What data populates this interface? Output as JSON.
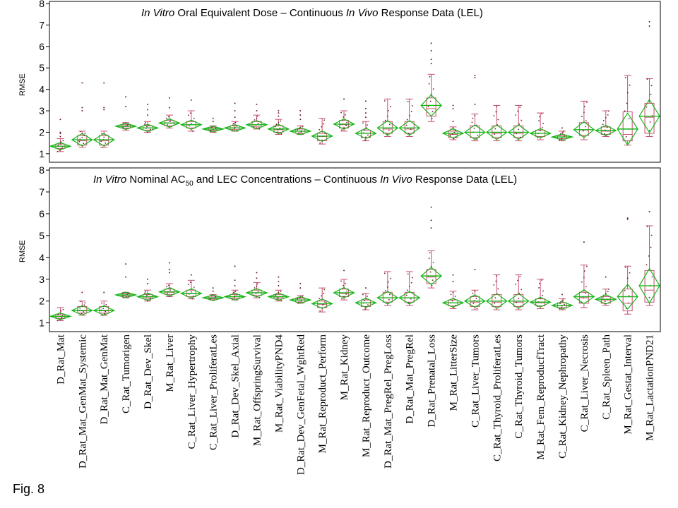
{
  "figure_label": "Fig. 8",
  "chart_data": [
    {
      "type": "box",
      "title_parts": [
        {
          "text": "In Vitro",
          "italic": true
        },
        {
          "text": " Oral Equivalent Dose – Continuous ",
          "italic": false
        },
        {
          "text": "In Vivo",
          "italic": true
        },
        {
          "text": " Response Data (LEL)",
          "italic": false
        }
      ],
      "ylabel": "RMSE",
      "ylim": [
        0.6,
        8.1
      ],
      "yticks": [
        1,
        2,
        3,
        4,
        5,
        6,
        7,
        8
      ],
      "colors": {
        "box": "#c8506e",
        "whisker": "#c8506e",
        "points": "#6b1f33",
        "diamond": "#19b419",
        "mean": "#19b419"
      },
      "categories": [
        "D_Rat_Mat",
        "D_Rat_Mat_GenMat_Systemic",
        "D_Rat_Mat_GenMat",
        "C_Rat_Tumorigen",
        "D_Rat_Dev_Skel",
        "M_Rat_Liver",
        "C_Rat_Liver_Hypertrophy",
        "C_Rat_Liver_ProliferatLes",
        "D_Rat_Dev_Skel_Axial",
        "M_Rat_OffspringSurvival",
        "M_Rat_ViabilityPND4",
        "D_Rat_Dev_GenFetal_WghtRed",
        "M_Rat_Reproduct_Perform",
        "M_Rat_Kidney",
        "M_Rat_Reproduct_Outcome",
        "D_Rat_Mat_PregRel_PregLoss",
        "D_Rat_Mat_PregRel",
        "D_Rat_Prenatal_Loss",
        "M_Rat_LitterSize",
        "C_Rat_Liver_Tumors",
        "C_Rat_Thyroid_ProliferatLes",
        "C_Rat_Thyroid_Tumors",
        "M_Rat_Fem_ReproducfTract",
        "C_Rat_Kidney_Nephropathy",
        "C_Rat_Liver_Necrosis",
        "C_Rat_Spleen_Path",
        "M_Rat_Gestat_Interval",
        "M_Rat_LactationPND21"
      ],
      "boxes": [
        {
          "whisker_low": 1.1,
          "q1": 1.25,
          "median": 1.35,
          "q3": 1.45,
          "whisker_high": 1.7,
          "mean": 1.35,
          "outliers": [
            1.8,
            1.95,
            2.0,
            2.6
          ]
        },
        {
          "whisker_low": 1.3,
          "q1": 1.4,
          "median": 1.6,
          "q3": 1.85,
          "whisker_high": 2.05,
          "mean": 1.65,
          "outliers": [
            3.0,
            3.15,
            4.3
          ]
        },
        {
          "whisker_low": 1.3,
          "q1": 1.4,
          "median": 1.6,
          "q3": 1.85,
          "whisker_high": 2.05,
          "mean": 1.65,
          "outliers": [
            3.05,
            3.15,
            4.3
          ]
        },
        {
          "whisker_low": 2.1,
          "q1": 2.2,
          "median": 2.27,
          "q3": 2.35,
          "whisker_high": 2.45,
          "mean": 2.28,
          "outliers": [
            3.2,
            3.65
          ]
        },
        {
          "whisker_low": 2.0,
          "q1": 2.1,
          "median": 2.2,
          "q3": 2.3,
          "whisker_high": 2.5,
          "mean": 2.2,
          "outliers": [
            2.8,
            3.05,
            3.3
          ]
        },
        {
          "whisker_low": 2.2,
          "q1": 2.3,
          "median": 2.42,
          "q3": 2.55,
          "whisker_high": 2.8,
          "mean": 2.43,
          "outliers": [
            3.15,
            3.6
          ]
        },
        {
          "whisker_low": 2.05,
          "q1": 2.2,
          "median": 2.35,
          "q3": 2.5,
          "whisker_high": 3.0,
          "mean": 2.35,
          "outliers": [
            3.5
          ]
        },
        {
          "whisker_low": 2.0,
          "q1": 2.1,
          "median": 2.15,
          "q3": 2.22,
          "whisker_high": 2.3,
          "mean": 2.15,
          "outliers": [
            2.5,
            2.65
          ]
        },
        {
          "whisker_low": 2.05,
          "q1": 2.12,
          "median": 2.2,
          "q3": 2.3,
          "whisker_high": 2.5,
          "mean": 2.2,
          "outliers": [
            2.7,
            3.0,
            3.35
          ]
        },
        {
          "whisker_low": 2.15,
          "q1": 2.25,
          "median": 2.35,
          "q3": 2.5,
          "whisker_high": 2.8,
          "mean": 2.35,
          "outliers": [
            3.0,
            3.3
          ]
        },
        {
          "whisker_low": 1.9,
          "q1": 2.0,
          "median": 2.12,
          "q3": 2.3,
          "whisker_high": 2.6,
          "mean": 2.15,
          "outliers": [
            2.75,
            2.9,
            3.0
          ]
        },
        {
          "whisker_low": 1.9,
          "q1": 1.95,
          "median": 2.05,
          "q3": 2.15,
          "whisker_high": 2.3,
          "mean": 2.05,
          "outliers": [
            2.6,
            2.8,
            3.0
          ]
        },
        {
          "whisker_low": 1.45,
          "q1": 1.6,
          "median": 1.8,
          "q3": 1.95,
          "whisker_high": 2.65,
          "mean": 1.82,
          "outliers": []
        },
        {
          "whisker_low": 2.05,
          "q1": 2.2,
          "median": 2.35,
          "q3": 2.55,
          "whisker_high": 3.0,
          "mean": 2.38,
          "outliers": [
            3.55
          ]
        },
        {
          "whisker_low": 1.6,
          "q1": 1.75,
          "median": 1.95,
          "q3": 2.1,
          "whisker_high": 2.5,
          "mean": 1.95,
          "outliers": [
            2.7,
            2.9,
            3.1,
            3.45
          ]
        },
        {
          "whisker_low": 1.8,
          "q1": 1.95,
          "median": 2.15,
          "q3": 2.5,
          "whisker_high": 3.55,
          "mean": 2.2,
          "outliers": []
        },
        {
          "whisker_low": 1.8,
          "q1": 1.95,
          "median": 2.15,
          "q3": 2.5,
          "whisker_high": 3.55,
          "mean": 2.2,
          "outliers": []
        },
        {
          "whisker_low": 2.5,
          "q1": 2.75,
          "median": 3.1,
          "q3": 3.6,
          "whisker_high": 4.7,
          "mean": 3.25,
          "outliers": [
            5.2,
            5.4,
            5.8,
            6.15
          ]
        },
        {
          "whisker_low": 1.65,
          "q1": 1.75,
          "median": 1.9,
          "q3": 2.05,
          "whisker_high": 2.25,
          "mean": 1.95,
          "outliers": [
            2.5,
            3.1,
            3.25
          ]
        },
        {
          "whisker_low": 1.6,
          "q1": 1.75,
          "median": 2.0,
          "q3": 2.3,
          "whisker_high": 2.85,
          "mean": 2.0,
          "outliers": [
            3.3,
            4.55,
            4.65
          ]
        },
        {
          "whisker_low": 1.6,
          "q1": 1.75,
          "median": 1.95,
          "q3": 2.3,
          "whisker_high": 3.25,
          "mean": 2.0,
          "outliers": []
        },
        {
          "whisker_low": 1.6,
          "q1": 1.75,
          "median": 1.95,
          "q3": 2.3,
          "whisker_high": 3.25,
          "mean": 2.0,
          "outliers": []
        },
        {
          "whisker_low": 1.65,
          "q1": 1.8,
          "median": 1.95,
          "q3": 2.1,
          "whisker_high": 2.9,
          "mean": 1.95,
          "outliers": []
        },
        {
          "whisker_low": 1.6,
          "q1": 1.7,
          "median": 1.78,
          "q3": 1.85,
          "whisker_high": 2.05,
          "mean": 1.78,
          "outliers": [
            2.2
          ]
        },
        {
          "whisker_low": 1.65,
          "q1": 1.85,
          "median": 2.1,
          "q3": 2.45,
          "whisker_high": 3.45,
          "mean": 2.12,
          "outliers": []
        },
        {
          "whisker_low": 1.8,
          "q1": 1.9,
          "median": 2.05,
          "q3": 2.25,
          "whisker_high": 3.0,
          "mean": 2.08,
          "outliers": []
        },
        {
          "whisker_low": 1.4,
          "q1": 1.6,
          "median": 1.9,
          "q3": 2.95,
          "whisker_high": 4.65,
          "mean": 2.15,
          "outliers": []
        },
        {
          "whisker_low": 1.8,
          "q1": 1.95,
          "median": 2.7,
          "q3": 3.35,
          "whisker_high": 4.5,
          "mean": 2.75,
          "outliers": [
            6.95,
            7.15
          ]
        }
      ]
    },
    {
      "type": "box",
      "title_parts": [
        {
          "text": "In Vitro",
          "italic": true
        },
        {
          "text": " Nominal AC",
          "italic": false
        },
        {
          "text": "50",
          "italic": false,
          "sub": true
        },
        {
          "text": " and LEC Concentrations – Continuous ",
          "italic": false
        },
        {
          "text": "In Vivo",
          "italic": true
        },
        {
          "text": " Response Data (LEL)",
          "italic": false
        }
      ],
      "ylabel": "RMSE",
      "ylim": [
        0.6,
        8.1
      ],
      "yticks": [
        1,
        2,
        3,
        4,
        5,
        6,
        7,
        8
      ],
      "categories": [
        "D_Rat_Mat",
        "D_Rat_Mat_GenMat_Systemic",
        "D_Rat_Mat_GenMat",
        "C_Rat_Tumorigen",
        "D_Rat_Dev_Skel",
        "M_Rat_Liver",
        "C_Rat_Liver_Hypertrophy",
        "C_Rat_Liver_ProliferatLes",
        "D_Rat_Dev_Skel_Axial",
        "M_Rat_OffspringSurvival",
        "M_Rat_ViabilityPND4",
        "D_Rat_Dev_GenFetal_WghtRed",
        "M_Rat_Reproduct_Perform",
        "M_Rat_Kidney",
        "M_Rat_Reproduct_Outcome",
        "D_Rat_Mat_PregRel_PregLoss",
        "D_Rat_Mat_PregRel",
        "D_Rat_Prenatal_Loss",
        "M_Rat_LitterSize",
        "C_Rat_Liver_Tumors",
        "C_Rat_Thyroid_ProliferatLes",
        "C_Rat_Thyroid_Tumors",
        "M_Rat_Fem_ReproducfTract",
        "C_Rat_Kidney_Nephropathy",
        "C_Rat_Liver_Necrosis",
        "C_Rat_Spleen_Path",
        "M_Rat_Gestat_Interval",
        "M_Rat_LactationPND21"
      ],
      "boxes": [
        {
          "whisker_low": 1.1,
          "q1": 1.2,
          "median": 1.28,
          "q3": 1.38,
          "whisker_high": 1.7,
          "mean": 1.3,
          "outliers": []
        },
        {
          "whisker_low": 1.35,
          "q1": 1.45,
          "median": 1.55,
          "q3": 1.75,
          "whisker_high": 2.0,
          "mean": 1.57,
          "outliers": [
            2.4
          ]
        },
        {
          "whisker_low": 1.35,
          "q1": 1.45,
          "median": 1.55,
          "q3": 1.75,
          "whisker_high": 2.0,
          "mean": 1.57,
          "outliers": [
            2.4
          ]
        },
        {
          "whisker_low": 2.15,
          "q1": 2.22,
          "median": 2.28,
          "q3": 2.33,
          "whisker_high": 2.4,
          "mean": 2.28,
          "outliers": [
            3.1,
            3.7
          ]
        },
        {
          "whisker_low": 2.0,
          "q1": 2.1,
          "median": 2.18,
          "q3": 2.3,
          "whisker_high": 2.5,
          "mean": 2.2,
          "outliers": [
            2.8,
            3.0
          ]
        },
        {
          "whisker_low": 2.2,
          "q1": 2.3,
          "median": 2.4,
          "q3": 2.55,
          "whisker_high": 2.8,
          "mean": 2.42,
          "outliers": [
            3.3,
            3.45,
            3.75
          ]
        },
        {
          "whisker_low": 2.1,
          "q1": 2.2,
          "median": 2.35,
          "q3": 2.5,
          "whisker_high": 2.95,
          "mean": 2.35,
          "outliers": [
            3.2
          ]
        },
        {
          "whisker_low": 2.05,
          "q1": 2.1,
          "median": 2.15,
          "q3": 2.22,
          "whisker_high": 2.3,
          "mean": 2.15,
          "outliers": [
            2.45,
            2.6
          ]
        },
        {
          "whisker_low": 2.05,
          "q1": 2.12,
          "median": 2.2,
          "q3": 2.3,
          "whisker_high": 2.5,
          "mean": 2.2,
          "outliers": [
            2.7,
            2.95,
            3.6
          ]
        },
        {
          "whisker_low": 2.15,
          "q1": 2.25,
          "median": 2.38,
          "q3": 2.5,
          "whisker_high": 2.85,
          "mean": 2.38,
          "outliers": [
            3.05,
            3.3
          ]
        },
        {
          "whisker_low": 2.0,
          "q1": 2.1,
          "median": 2.18,
          "q3": 2.3,
          "whisker_high": 2.5,
          "mean": 2.2,
          "outliers": [
            2.7,
            2.9,
            3.1
          ]
        },
        {
          "whisker_low": 1.9,
          "q1": 1.95,
          "median": 2.05,
          "q3": 2.12,
          "whisker_high": 2.25,
          "mean": 2.05,
          "outliers": [
            2.6,
            2.8
          ]
        },
        {
          "whisker_low": 1.5,
          "q1": 1.7,
          "median": 1.85,
          "q3": 2.0,
          "whisker_high": 2.6,
          "mean": 1.88,
          "outliers": []
        },
        {
          "whisker_low": 2.05,
          "q1": 2.2,
          "median": 2.35,
          "q3": 2.55,
          "whisker_high": 3.0,
          "mean": 2.38,
          "outliers": [
            3.4
          ]
        },
        {
          "whisker_low": 1.6,
          "q1": 1.75,
          "median": 1.92,
          "q3": 2.05,
          "whisker_high": 2.35,
          "mean": 1.92,
          "outliers": [
            2.6
          ]
        },
        {
          "whisker_low": 1.8,
          "q1": 1.95,
          "median": 2.15,
          "q3": 2.4,
          "whisker_high": 3.35,
          "mean": 2.15,
          "outliers": []
        },
        {
          "whisker_low": 1.8,
          "q1": 1.95,
          "median": 2.15,
          "q3": 2.4,
          "whisker_high": 3.35,
          "mean": 2.15,
          "outliers": []
        },
        {
          "whisker_low": 2.6,
          "q1": 2.8,
          "median": 3.1,
          "q3": 3.45,
          "whisker_high": 4.3,
          "mean": 3.15,
          "outliers": [
            5.35,
            5.7,
            6.3
          ]
        },
        {
          "whisker_low": 1.65,
          "q1": 1.78,
          "median": 1.92,
          "q3": 2.05,
          "whisker_high": 2.45,
          "mean": 1.92,
          "outliers": [
            2.9,
            3.2
          ]
        },
        {
          "whisker_low": 1.6,
          "q1": 1.75,
          "median": 1.95,
          "q3": 2.2,
          "whisker_high": 2.5,
          "mean": 2.0,
          "outliers": [
            3.45
          ]
        },
        {
          "whisker_low": 1.6,
          "q1": 1.75,
          "median": 1.95,
          "q3": 2.3,
          "whisker_high": 3.2,
          "mean": 2.0,
          "outliers": []
        },
        {
          "whisker_low": 1.6,
          "q1": 1.75,
          "median": 1.95,
          "q3": 2.3,
          "whisker_high": 3.2,
          "mean": 2.0,
          "outliers": []
        },
        {
          "whisker_low": 1.65,
          "q1": 1.78,
          "median": 1.92,
          "q3": 2.1,
          "whisker_high": 3.0,
          "mean": 1.95,
          "outliers": []
        },
        {
          "whisker_low": 1.6,
          "q1": 1.7,
          "median": 1.8,
          "q3": 1.92,
          "whisker_high": 2.1,
          "mean": 1.8,
          "outliers": [
            2.3
          ]
        },
        {
          "whisker_low": 1.7,
          "q1": 1.9,
          "median": 2.15,
          "q3": 2.4,
          "whisker_high": 3.65,
          "mean": 2.2,
          "outliers": [
            4.7
          ]
        },
        {
          "whisker_low": 1.8,
          "q1": 1.9,
          "median": 2.05,
          "q3": 2.2,
          "whisker_high": 2.55,
          "mean": 2.08,
          "outliers": [
            3.1
          ]
        },
        {
          "whisker_low": 1.4,
          "q1": 1.55,
          "median": 1.9,
          "q3": 2.55,
          "whisker_high": 3.6,
          "mean": 2.2,
          "outliers": [
            5.75,
            5.8
          ]
        },
        {
          "whisker_low": 1.8,
          "q1": 1.95,
          "median": 2.5,
          "q3": 3.4,
          "whisker_high": 5.45,
          "mean": 2.7,
          "outliers": [
            6.1
          ]
        }
      ]
    }
  ]
}
